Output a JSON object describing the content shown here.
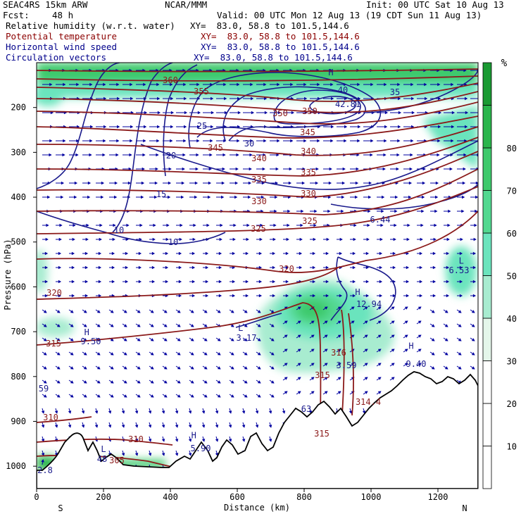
{
  "header": {
    "model": "SEAC4RS 15km ARW",
    "org": "NCAR/MMM",
    "init": "Init: 00 UTC Sat 10 Aug 13",
    "fcst_label": "Fcst:",
    "fcst_value": "48 h",
    "valid": "Valid: 00 UTC Mon 12 Aug 13 (19 CDT Sun 11 Aug 13)"
  },
  "fields": [
    {
      "name": "Relative humidity (w.r.t. water)",
      "xy": "XY=  83.0, 58.8 to 101.5,144.6",
      "color": "#000000"
    },
    {
      "name": "Potential temperature",
      "xy": "XY=  83.0, 58.8 to 101.5,144.6",
      "color": "#8b0000"
    },
    {
      "name": "Horizontal wind speed",
      "xy": "XY=  83.0, 58.8 to 101.5,144.6",
      "color": "#00008b"
    },
    {
      "name": "Circulation vectors",
      "xy": "XY=  83.0, 58.8 to 101.5,144.6",
      "color": "#00008b"
    }
  ],
  "colorbar": {
    "unit": "%",
    "ticks": [
      "10",
      "20",
      "30",
      "40",
      "50",
      "60",
      "70",
      "80"
    ],
    "colors": [
      "#ffffff",
      "#ffffff",
      "#ffffff",
      "#e4f6ea",
      "#a8ecd0",
      "#6be4bd",
      "#52d890",
      "#3ec96c",
      "#2ab54c",
      "#1a9a33"
    ]
  },
  "chart_data": {
    "type": "heatmap",
    "title": "",
    "xlabel": "Distance (km)",
    "ylabel": "Pressure (hPa)",
    "xlim": [
      0,
      1320
    ],
    "ylim": [
      1050,
      100
    ],
    "x_ticks": [
      "0",
      "200",
      "400",
      "600",
      "800",
      "1000",
      "1200"
    ],
    "y_ticks": [
      "200",
      "300",
      "400",
      "500",
      "600",
      "700",
      "800",
      "900",
      "1000"
    ],
    "x_ends": {
      "left": "S",
      "right": "N"
    },
    "theta_labels": [
      "360",
      "355",
      "350",
      "350",
      "345",
      "345",
      "340",
      "340",
      "335",
      "335",
      "330",
      "330",
      "325",
      "325",
      "320",
      "320",
      "315",
      "315",
      "316",
      "315",
      "310",
      "310",
      "305",
      "314.4"
    ],
    "wind_labels": [
      "30",
      "25",
      "20",
      "15",
      "10",
      "10",
      "35",
      "40",
      "42.81",
      "6.44",
      "6.53",
      "12.94",
      "3.17",
      "9.50",
      "9.40",
      "3.59",
      "5.90",
      "48",
      "59",
      "2.8",
      "63"
    ],
    "wind_extrema": [
      {
        "type": "H",
        "value": "42.81",
        "x_km": 880,
        "p": 150
      },
      {
        "type": "L",
        "value": "6.53",
        "x_km": 1270,
        "p": 570
      },
      {
        "type": "H",
        "value": "12.94",
        "x_km": 960,
        "p": 640
      },
      {
        "type": "L",
        "value": "3.17",
        "x_km": 610,
        "p": 720
      },
      {
        "type": "H",
        "value": "9.50",
        "x_km": 150,
        "p": 730
      },
      {
        "type": "H",
        "value": "9.40",
        "x_km": 1120,
        "p": 760
      },
      {
        "type": "H",
        "value": "5.90",
        "x_km": 470,
        "p": 960
      },
      {
        "type": "L",
        "value": "48",
        "x_km": 200,
        "p": 990
      }
    ]
  }
}
